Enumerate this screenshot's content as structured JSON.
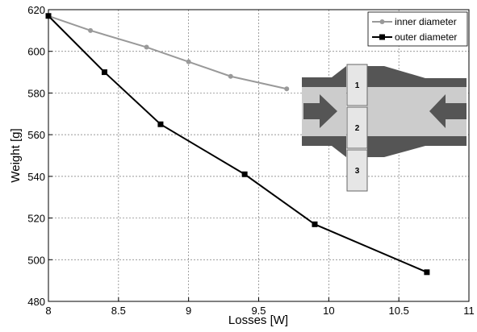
{
  "chart_data": {
    "type": "line",
    "xlabel": "Losses [W]",
    "ylabel": "Weight [g]",
    "xlim": [
      8,
      11
    ],
    "ylim": [
      480,
      620
    ],
    "xticks": [
      "8",
      "8.5",
      "9",
      "9.5",
      "10",
      "10.5",
      "11"
    ],
    "yticks": [
      "480",
      "500",
      "520",
      "540",
      "560",
      "580",
      "600",
      "620"
    ],
    "grid": true,
    "legend_position": "top-right",
    "series": [
      {
        "name": "inner diameter",
        "color": "#999999",
        "marker": "circle",
        "x": [
          8.0,
          8.3,
          8.7,
          9.0,
          9.3,
          9.7
        ],
        "y": [
          617,
          610,
          602,
          595,
          588,
          582
        ]
      },
      {
        "name": "outer diameter",
        "color": "#000000",
        "marker": "square",
        "x": [
          8.0,
          8.4,
          8.8,
          9.4,
          9.9,
          10.7
        ],
        "y": [
          617,
          590,
          565,
          541,
          517,
          494
        ]
      }
    ]
  },
  "inset": {
    "segment_labels": [
      "1",
      "2",
      "3"
    ],
    "colors": {
      "dark": "#555555",
      "light": "#cccccc",
      "segment": "#e6e6e6"
    }
  }
}
